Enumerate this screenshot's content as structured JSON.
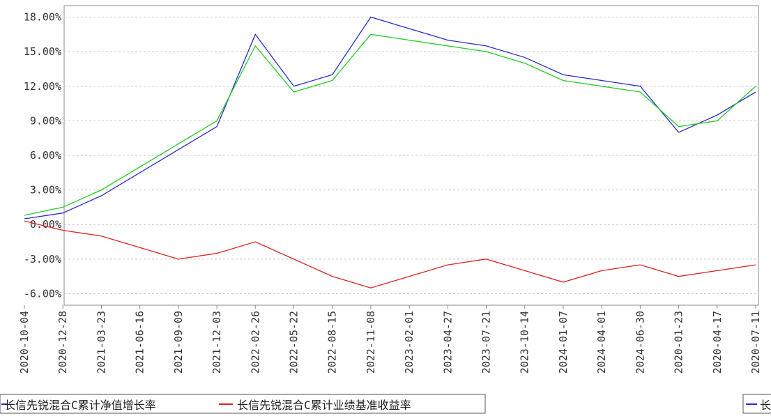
{
  "chart_data": {
    "type": "line",
    "title": "",
    "xlabel": "",
    "ylabel": "",
    "ylim": [
      -7.0,
      19.0
    ],
    "grid": true,
    "legend_placement": "bottom",
    "y_ticks": [
      "-6.00%",
      "-3.00%",
      "0.00%",
      "3.00%",
      "6.00%",
      "9.00%",
      "12.00%",
      "15.00%",
      "18.00%"
    ],
    "y_tick_values": [
      -6,
      -3,
      0,
      3,
      6,
      9,
      12,
      15,
      18
    ],
    "x_tick_labels": [
      "2020-10-04",
      "2020-12-28",
      "2021-03-23",
      "2021-06-16",
      "2021-09-09",
      "2021-12-03",
      "2022-02-26",
      "2022-05-22",
      "2022-08-15",
      "2022-11-08",
      "2023-02-01",
      "2023-04-27",
      "2023-07-21",
      "2023-10-14",
      "2024-01-07",
      "2024-04-01",
      "2024-06-30",
      "2020-01-23",
      "2020-04-17",
      "2020-07-11"
    ],
    "x": [
      "2020-10-04",
      "2020-12-28",
      "2021-03-23",
      "2021-06-16",
      "2021-09-09",
      "2021-12-03",
      "2022-02-26",
      "2022-05-22",
      "2022-08-15",
      "2022-11-08",
      "2023-02-01",
      "2023-04-27",
      "2023-07-21",
      "2023-10-14",
      "2024-01-07",
      "2024-04-01",
      "2024-06-30",
      "2020-01-23",
      "2020-04-17",
      "2020-07-11"
    ],
    "series": [
      {
        "name": "长信先锐混合C累计净值增长率",
        "color": "#2a2acc",
        "values": [
          0.5,
          1.0,
          2.5,
          4.5,
          6.5,
          8.5,
          16.5,
          12.0,
          13.0,
          18.0,
          17.0,
          16.0,
          15.5,
          14.5,
          13.0,
          12.5,
          12.0,
          8.0,
          9.5,
          11.5
        ]
      },
      {
        "name": "长信先锐混合C累计业绩基准收益率",
        "color": "#dd2222",
        "values": [
          0.3,
          -0.5,
          -1.0,
          -2.0,
          -3.0,
          -2.5,
          -1.5,
          -3.0,
          -4.5,
          -5.5,
          -4.5,
          -3.5,
          -3.0,
          -4.0,
          -5.0,
          -4.0,
          -3.5,
          -4.5,
          -4.0,
          -3.5
        ]
      },
      {
        "name": "",
        "color": "#22cc22",
        "values": [
          0.8,
          1.5,
          3.0,
          5.0,
          7.0,
          9.0,
          15.5,
          11.5,
          12.5,
          16.5,
          16.0,
          15.5,
          15.0,
          14.0,
          12.5,
          12.0,
          11.5,
          8.5,
          9.0,
          12.0
        ]
      }
    ],
    "legend": [
      {
        "label": "长信先锐混合C累计净值增长率",
        "color": "#2a2acc"
      },
      {
        "label": "长信先锐混合C累计业绩基准收益率",
        "color": "#dd2222"
      }
    ],
    "legend_right_fragment": "长",
    "colors": {
      "grid": "#c8c8c8",
      "axis": "#888888",
      "text": "#333333"
    }
  }
}
